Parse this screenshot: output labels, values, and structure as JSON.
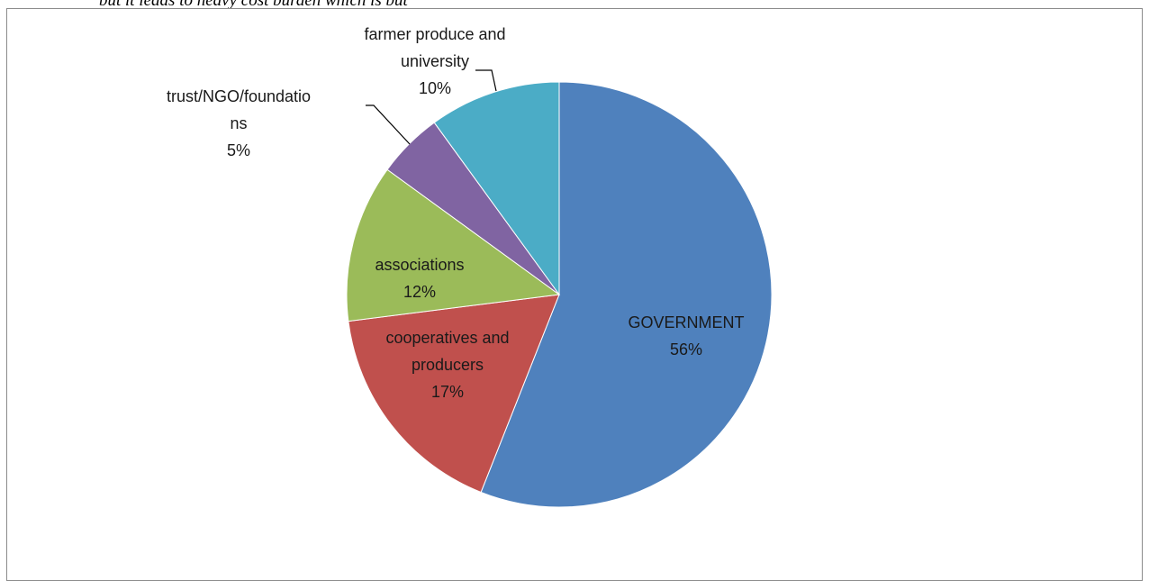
{
  "page": {
    "caption_fragment": "but it leads to heavy cost burden which is but"
  },
  "chart_data": {
    "type": "pie",
    "slices": [
      {
        "label_lines": [
          "GOVERNMENT",
          "56%"
        ],
        "value": 56,
        "color": "#4f81bd"
      },
      {
        "label_lines": [
          "cooperatives and",
          "producers",
          "17%"
        ],
        "value": 17,
        "color": "#c0504d"
      },
      {
        "label_lines": [
          "associations",
          "12%"
        ],
        "value": 12,
        "color": "#9bbb59"
      },
      {
        "label_lines": [
          "trust/NGO/foundatio",
          "ns",
          "5%"
        ],
        "value": 5,
        "color": "#8064a2"
      },
      {
        "label_lines": [
          "farmer produce and",
          "university",
          "10%"
        ],
        "value": 10,
        "color": "#4bacc6"
      }
    ],
    "legend": "none"
  }
}
